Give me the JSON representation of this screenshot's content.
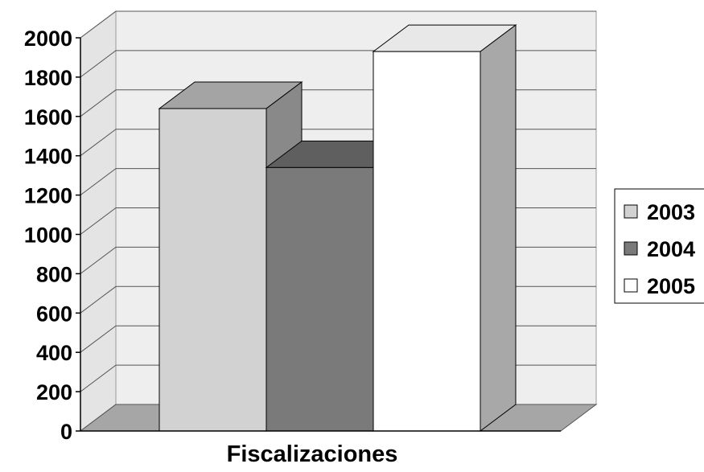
{
  "chart_data": {
    "type": "bar",
    "title": "",
    "xlabel": "",
    "ylabel": "",
    "categories": [
      "Fiscalizaciones"
    ],
    "series": [
      {
        "name": "2003",
        "values": [
          1640
        ],
        "color": "#d2d2d2"
      },
      {
        "name": "2004",
        "values": [
          1340
        ],
        "color": "#7a7a7a"
      },
      {
        "name": "2005",
        "values": [
          1930
        ],
        "color": "#ffffff"
      }
    ],
    "ylim": [
      0,
      2000
    ],
    "yticks": [
      "0",
      "200",
      "400",
      "600",
      "800",
      "1000",
      "1200",
      "1400",
      "1600",
      "1800",
      "2000"
    ],
    "grid": true,
    "legend": "right",
    "style": "3d-column"
  }
}
